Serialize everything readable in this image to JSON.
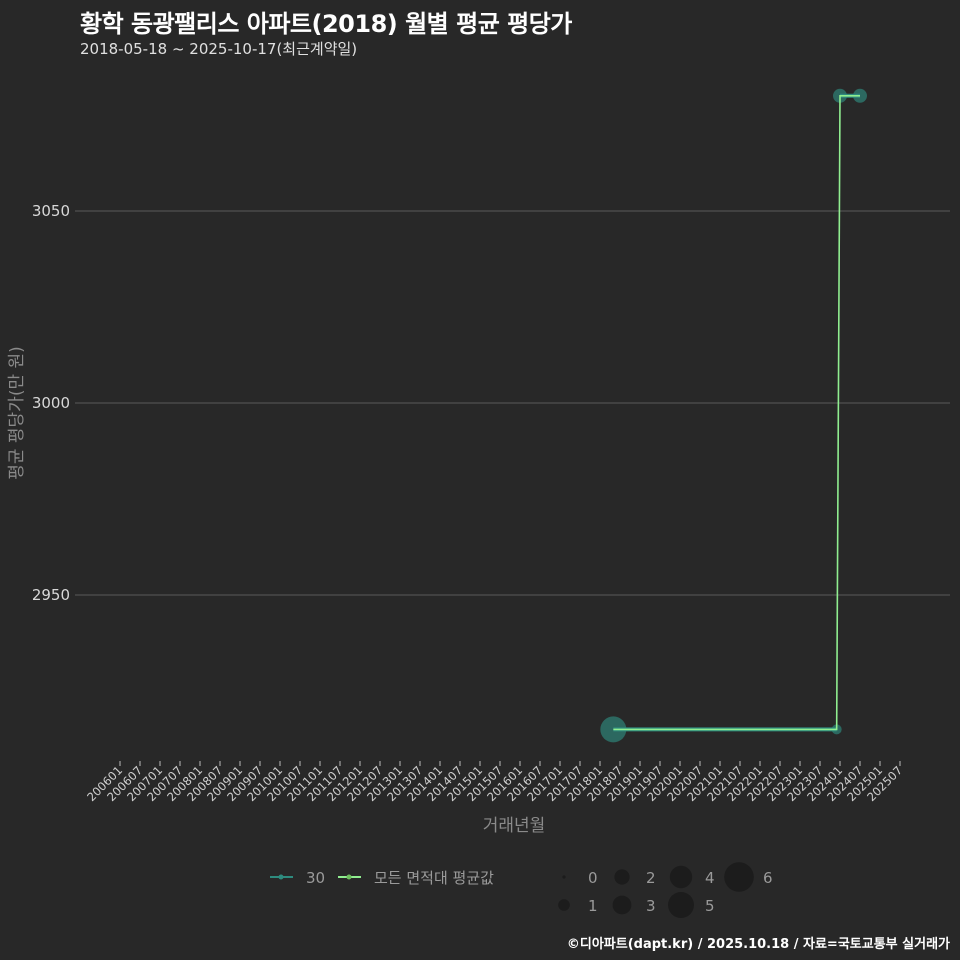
{
  "header": {
    "title": "황학 동광팰리스 아파트(2018) 월별 평균 평당가",
    "subtitle": "2018-05-18 ~ 2025-10-17(최근계약일)"
  },
  "footer": {
    "caption": "©디아파트(dapt.kr) / 2025.10.18 / 자료=국토교통부 실거래가"
  },
  "colors": {
    "background": "#282828",
    "grid": "#5a5a5a",
    "series_30": "#2e8b7e",
    "series_all": "#90ee90"
  },
  "chart_data": {
    "type": "line",
    "title": "황학 동광팰리스 아파트(2018) 월별 평균 평당가",
    "subtitle": "2018-05-18 ~ 2025-10-17(최근계약일)",
    "xlabel": "거래년월",
    "ylabel": "평균 평당가(만 원)",
    "ylim": [
      2905,
      3085
    ],
    "yticks": [
      2950,
      3000,
      3050
    ],
    "grid": true,
    "legend_position": "bottom",
    "x_ticks": [
      "200601",
      "200607",
      "200701",
      "200707",
      "200801",
      "200807",
      "200901",
      "200907",
      "201001",
      "201007",
      "201101",
      "201107",
      "201201",
      "201207",
      "201301",
      "201307",
      "201401",
      "201407",
      "201501",
      "201507",
      "201601",
      "201607",
      "201701",
      "201707",
      "201801",
      "201807",
      "201901",
      "201907",
      "202001",
      "202007",
      "202101",
      "202107",
      "202201",
      "202207",
      "202301",
      "202307",
      "202401",
      "202407",
      "202501",
      "202507"
    ],
    "series": [
      {
        "name": "30",
        "color": "#2e8b7e",
        "points": [
          {
            "x": "201805",
            "y": 2915,
            "count": 5
          },
          {
            "x": "202312",
            "y": 2915,
            "count": 1
          },
          {
            "x": "202401",
            "y": 3080,
            "count": 2
          },
          {
            "x": "202407",
            "y": 3080,
            "count": 2
          }
        ]
      },
      {
        "name": "모든 면적대 평균값",
        "color": "#90ee90",
        "points": [
          {
            "x": "201805",
            "y": 2915
          },
          {
            "x": "202312",
            "y": 2915
          },
          {
            "x": "202401",
            "y": 3080
          },
          {
            "x": "202407",
            "y": 3080
          }
        ]
      }
    ],
    "size_legend": {
      "title": "",
      "values": [
        0,
        1,
        2,
        3,
        4,
        5,
        6
      ]
    }
  },
  "legend": {
    "series_labels": [
      "30",
      "모든 면적대 평균값"
    ],
    "size_labels": [
      "0",
      "1",
      "2",
      "3",
      "4",
      "5",
      "6"
    ]
  }
}
